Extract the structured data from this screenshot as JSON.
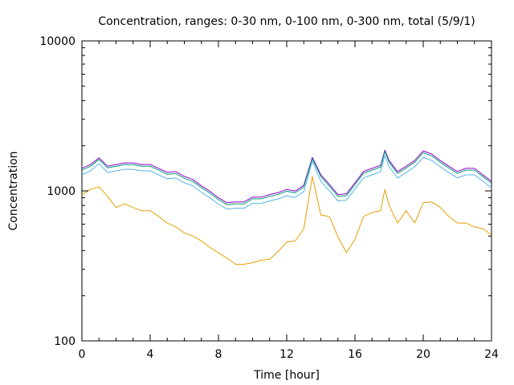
{
  "chart_data": {
    "type": "line",
    "title": "Concentration, ranges: 0-30 nm, 0-100 nm, 0-300 nm, total (5/9/1)",
    "xlabel": "Time [hour]",
    "ylabel": "Concentration",
    "xlim": [
      0,
      24
    ],
    "ylim": [
      100,
      10000
    ],
    "yscale": "log",
    "xticks": [
      "0",
      "4",
      "8",
      "12",
      "16",
      "20",
      "24"
    ],
    "xtick_values": [
      0,
      4,
      8,
      12,
      16,
      20,
      24
    ],
    "yticks": [
      "100",
      "1000",
      "10000"
    ],
    "ytick_values": [
      100,
      1000,
      10000
    ],
    "grid": false,
    "legend": "none",
    "x": [
      0,
      0.5,
      1,
      1.5,
      2,
      2.5,
      3,
      3.5,
      4,
      4.5,
      5,
      5.5,
      6,
      6.5,
      7,
      7.5,
      8,
      8.5,
      9,
      9.5,
      10,
      10.5,
      11,
      11.5,
      12,
      12.5,
      13,
      13.5,
      14,
      14.5,
      15,
      15.5,
      16,
      16.5,
      17,
      17.5,
      17.75,
      18,
      18.5,
      19,
      19.5,
      20,
      20.5,
      21,
      21.5,
      22,
      22.5,
      23,
      23.5,
      24
    ],
    "series": [
      {
        "name": "total",
        "color": "#9400d3",
        "values": [
          1413,
          1500,
          1660,
          1462,
          1500,
          1537,
          1537,
          1500,
          1500,
          1413,
          1329,
          1345,
          1250,
          1191,
          1080,
          993,
          900,
          834,
          845,
          845,
          910,
          910,
          945,
          975,
          1023,
          998,
          1092,
          1675,
          1280,
          1106,
          945,
          957,
          1134,
          1345,
          1413,
          1480,
          1870,
          1595,
          1345,
          1462,
          1595,
          1849,
          1760,
          1595,
          1462,
          1345,
          1413,
          1413,
          1280,
          1156
        ]
      },
      {
        "name": "0-300 nm",
        "color": "#009e73",
        "values": [
          1375,
          1460,
          1620,
          1425,
          1460,
          1495,
          1495,
          1460,
          1460,
          1375,
          1290,
          1305,
          1215,
          1155,
          1050,
          965,
          875,
          810,
          820,
          820,
          885,
          885,
          920,
          948,
          995,
          970,
          1062,
          1640,
          1245,
          1075,
          918,
          930,
          1102,
          1308,
          1375,
          1440,
          1830,
          1552,
          1308,
          1422,
          1552,
          1800,
          1712,
          1552,
          1422,
          1308,
          1375,
          1375,
          1245,
          1125
        ]
      },
      {
        "name": "0-100 nm",
        "color": "#56b4e9",
        "values": [
          1280,
          1360,
          1520,
          1325,
          1360,
          1392,
          1392,
          1360,
          1360,
          1280,
          1205,
          1220,
          1133,
          1080,
          980,
          900,
          816,
          756,
          766,
          766,
          825,
          825,
          857,
          884,
          928,
          905,
          990,
          1580,
          1160,
          1003,
          857,
          868,
          1028,
          1220,
          1280,
          1342,
          1720,
          1446,
          1220,
          1325,
          1446,
          1676,
          1595,
          1446,
          1325,
          1220,
          1280,
          1280,
          1160,
          1048
        ]
      },
      {
        "name": "0-30 nm",
        "color": "#e69f00",
        "values": [
          940,
          1023,
          1066,
          920,
          775,
          820,
          775,
          738,
          738,
          675,
          610,
          575,
          525,
          500,
          464,
          420,
          387,
          356,
          324,
          324,
          332,
          345,
          350,
          395,
          456,
          464,
          560,
          1250,
          690,
          675,
          495,
          387,
          475,
          675,
          718,
          738,
          1023,
          800,
          610,
          738,
          610,
          834,
          845,
          775,
          675,
          610,
          610,
          575,
          560,
          508
        ]
      }
    ]
  }
}
